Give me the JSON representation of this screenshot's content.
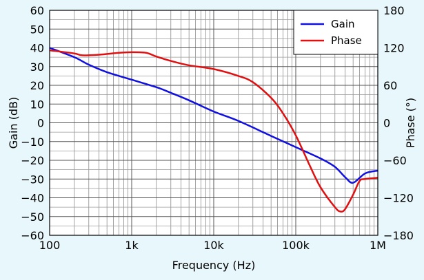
{
  "chart_data": {
    "type": "line",
    "title": "",
    "xlabel": "Frequency (Hz)",
    "ylabel": "Gain (dB)",
    "y2label": "Phase (°)",
    "x_scale": "log",
    "xlim": [
      100,
      1000000
    ],
    "ylim": [
      -60,
      60
    ],
    "y2lim": [
      -180,
      180
    ],
    "grid": true,
    "legend_position": "top-right",
    "x_ticks": [
      {
        "value": 100,
        "label": "100"
      },
      {
        "value": 1000,
        "label": "1k"
      },
      {
        "value": 10000,
        "label": "10k"
      },
      {
        "value": 100000,
        "label": "100k"
      },
      {
        "value": 1000000,
        "label": "1M"
      }
    ],
    "y_ticks": [
      {
        "value": 60,
        "label": "60"
      },
      {
        "value": 50,
        "label": "50"
      },
      {
        "value": 40,
        "label": "40"
      },
      {
        "value": 30,
        "label": "30"
      },
      {
        "value": 20,
        "label": "20"
      },
      {
        "value": 10,
        "label": "10"
      },
      {
        "value": 0,
        "label": "0"
      },
      {
        "value": -10,
        "label": "−10"
      },
      {
        "value": -20,
        "label": "−20"
      },
      {
        "value": -30,
        "label": "−30"
      },
      {
        "value": -40,
        "label": "−40"
      },
      {
        "value": -50,
        "label": "−50"
      },
      {
        "value": -60,
        "label": "−60"
      }
    ],
    "y2_ticks": [
      {
        "value": 180,
        "label": "180"
      },
      {
        "value": 120,
        "label": "120"
      },
      {
        "value": 60,
        "label": "60"
      },
      {
        "value": 0,
        "label": "0"
      },
      {
        "value": -60,
        "label": "−60"
      },
      {
        "value": -120,
        "label": "−120"
      },
      {
        "value": -180,
        "label": "−180"
      }
    ],
    "series": [
      {
        "name": "Gain",
        "axis": "left",
        "color": "#1010e0",
        "x": [
          100,
          200,
          300,
          500,
          1000,
          2000,
          3000,
          5000,
          10000,
          20000,
          50000,
          100000,
          200000,
          300000,
          400000,
          500000,
          700000,
          1000000
        ],
        "y": [
          40,
          35,
          31,
          27,
          23,
          19,
          16,
          12,
          6,
          1,
          -7,
          -13,
          -19,
          -23.5,
          -29,
          -32,
          -27,
          -25.5
        ]
      },
      {
        "name": "Phase",
        "axis": "right",
        "color": "#e01010",
        "x": [
          100,
          200,
          250,
          400,
          700,
          1000,
          1500,
          2000,
          3000,
          5000,
          10000,
          20000,
          30000,
          50000,
          70000,
          100000,
          150000,
          200000,
          300000,
          350000,
          400000,
          500000,
          600000,
          700000,
          1000000
        ],
        "y": [
          116,
          111,
          108,
          109,
          112,
          113,
          112,
          106,
          99,
          92,
          86,
          75,
          65,
          40,
          15,
          -20,
          -70,
          -103,
          -135,
          -142,
          -138,
          -115,
          -93,
          -90,
          -88
        ]
      }
    ]
  }
}
